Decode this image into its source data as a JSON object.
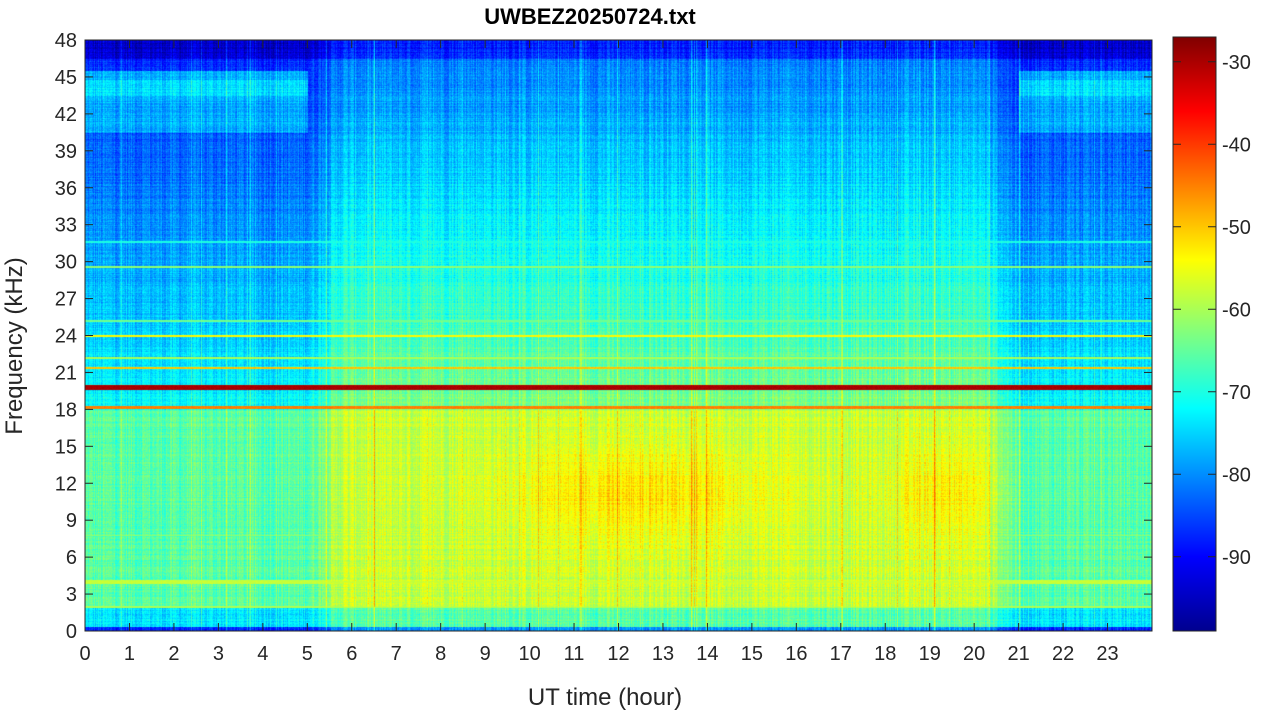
{
  "chart_data": {
    "type": "heatmap",
    "title": "UWBEZ20250724.txt",
    "xlabel": "UT time (hour)",
    "ylabel": "Frequency (kHz)",
    "xlim": [
      0,
      24
    ],
    "ylim": [
      0,
      48
    ],
    "x_ticks": [
      "0",
      "1",
      "2",
      "3",
      "4",
      "5",
      "6",
      "7",
      "8",
      "9",
      "10",
      "11",
      "12",
      "13",
      "14",
      "15",
      "16",
      "17",
      "18",
      "19",
      "20",
      "21",
      "22",
      "23"
    ],
    "y_ticks": [
      "0",
      "3",
      "6",
      "9",
      "12",
      "15",
      "18",
      "21",
      "24",
      "27",
      "30",
      "33",
      "36",
      "39",
      "42",
      "45",
      "48"
    ],
    "colorbar": {
      "colormap": "jet",
      "range": [
        -99,
        -27
      ],
      "ticks": [
        "-30",
        "-40",
        "-50",
        "-60",
        "-70",
        "-80",
        "-90"
      ]
    },
    "narrowband_lines_khz": [
      19.8,
      18.2,
      21.4,
      24.0,
      17.4
    ],
    "description_values": {
      "peak_level_db": -30,
      "background_high_freq_db": -88,
      "band_3_18khz_db": -58
    }
  }
}
